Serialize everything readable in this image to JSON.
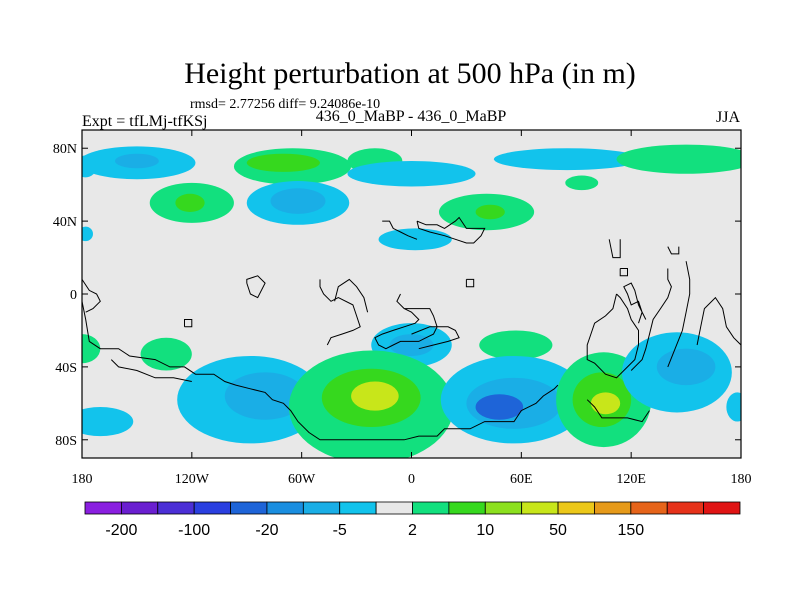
{
  "chart_data": {
    "type": "heatmap",
    "title": "Height perturbation at 500 hPa (in m)",
    "stats": "rmsd= 2.77256 diff= 9.24086e-10",
    "left_label": "Expt = tfLMj-tfKSj",
    "center_label": "436_0_MaBP - 436_0_MaBP",
    "right_label": "JJA",
    "x_ticks": [
      "180",
      "120W",
      "60W",
      "0",
      "60E",
      "120E",
      "180"
    ],
    "x_tick_values": [
      -180,
      -120,
      -60,
      0,
      60,
      120,
      180
    ],
    "y_ticks": [
      "80N",
      "40N",
      "0",
      "40S",
      "80S"
    ],
    "y_tick_values": [
      80,
      40,
      0,
      -40,
      -80
    ],
    "xlim": [
      -180,
      180
    ],
    "ylim": [
      -90,
      90
    ],
    "colorbar": {
      "colors": [
        "#8a1fe0",
        "#6a1fd0",
        "#4b2fd6",
        "#2a3fe0",
        "#1e64d8",
        "#1a8ee0",
        "#1aaee6",
        "#12c3ec",
        "#e8e8e8",
        "#12e07e",
        "#36d81e",
        "#8ce01e",
        "#c8e61a",
        "#ecc81a",
        "#e69a1a",
        "#e6641a",
        "#e6321a",
        "#e01414"
      ],
      "labels": [
        "-200",
        "-100",
        "-20",
        "-5",
        "2",
        "10",
        "50",
        "150"
      ],
      "label_positions": [
        1,
        3,
        5,
        7,
        9,
        11,
        13,
        15
      ]
    },
    "regions": [
      {
        "name": "cyan-north-atlantic",
        "level": 2,
        "cx": -150,
        "cy": 72,
        "rx": 32,
        "ry": 9
      },
      {
        "name": "blue-north-atlantic",
        "level": 3,
        "cx": -150,
        "cy": 73,
        "rx": 12,
        "ry": 4
      },
      {
        "name": "cyan-far-west",
        "level": 2,
        "cx": -178,
        "cy": 70,
        "rx": 6,
        "ry": 6
      },
      {
        "name": "green-north-america",
        "level": 8,
        "cx": -65,
        "cy": 70,
        "rx": 32,
        "ry": 10
      },
      {
        "name": "lime-north-america",
        "level": 9,
        "cx": -70,
        "cy": 72,
        "rx": 20,
        "ry": 5
      },
      {
        "name": "green-polar-left",
        "level": 8,
        "cx": -20,
        "cy": 73,
        "rx": 15,
        "ry": 7
      },
      {
        "name": "cyan-polar-mid",
        "level": 2,
        "cx": 0,
        "cy": 66,
        "rx": 35,
        "ry": 7
      },
      {
        "name": "cyan-polar-right",
        "level": 2,
        "cx": 85,
        "cy": 74,
        "rx": 40,
        "ry": 6
      },
      {
        "name": "green-far-east",
        "level": 8,
        "cx": 150,
        "cy": 74,
        "rx": 38,
        "ry": 8
      },
      {
        "name": "green-siberia",
        "level": 8,
        "cx": 93,
        "cy": 61,
        "rx": 9,
        "ry": 4
      },
      {
        "name": "green-pacific-west",
        "level": 8,
        "cx": -120,
        "cy": 50,
        "rx": 23,
        "ry": 11
      },
      {
        "name": "lime-pacific-west",
        "level": 9,
        "cx": -121,
        "cy": 50,
        "rx": 8,
        "ry": 5
      },
      {
        "name": "cyan-pacific",
        "level": 2,
        "cx": -62,
        "cy": 50,
        "rx": 28,
        "ry": 12
      },
      {
        "name": "blue-pacific",
        "level": 3,
        "cx": -62,
        "cy": 51,
        "rx": 15,
        "ry": 7
      },
      {
        "name": "green-atlantic",
        "level": 8,
        "cx": 41,
        "cy": 45,
        "rx": 26,
        "ry": 10
      },
      {
        "name": "lime-atlantic",
        "level": 9,
        "cx": 43,
        "cy": 45,
        "rx": 8,
        "ry": 4
      },
      {
        "name": "cyan-mid-asia",
        "level": 2,
        "cx": 2,
        "cy": 30,
        "rx": 20,
        "ry": 6
      },
      {
        "name": "cyan-west-edge",
        "level": 2,
        "cx": -178,
        "cy": 33,
        "rx": 4,
        "ry": 4
      },
      {
        "name": "cyan-south-tropic",
        "level": 2,
        "cx": 0,
        "cy": -28,
        "rx": 22,
        "ry": 12
      },
      {
        "name": "blue-south-tropic",
        "level": 3,
        "cx": 0,
        "cy": -28,
        "rx": 12,
        "ry": 6
      },
      {
        "name": "green-south-africa",
        "level": 8,
        "cx": 57,
        "cy": -28,
        "rx": 20,
        "ry": 8
      },
      {
        "name": "green-south-west",
        "level": 8,
        "cx": -180,
        "cy": -30,
        "rx": 10,
        "ry": 8
      },
      {
        "name": "green-south-america",
        "level": 8,
        "cx": -134,
        "cy": -33,
        "rx": 14,
        "ry": 9
      },
      {
        "name": "cyan-south-pacific",
        "level": 2,
        "cx": -88,
        "cy": -58,
        "rx": 40,
        "ry": 24
      },
      {
        "name": "blue-south-pacific",
        "level": 3,
        "cx": -80,
        "cy": -56,
        "rx": 22,
        "ry": 13
      },
      {
        "name": "green-south-atlantic",
        "level": 8,
        "cx": -22,
        "cy": -62,
        "rx": 45,
        "ry": 31
      },
      {
        "name": "lime-south-atlantic",
        "level": 9,
        "cx": -22,
        "cy": -57,
        "rx": 27,
        "ry": 16
      },
      {
        "name": "yellow-south-atlantic",
        "level": 10,
        "cx": -20,
        "cy": -56,
        "rx": 13,
        "ry": 8
      },
      {
        "name": "cyan-south-indian",
        "level": 2,
        "cx": 56,
        "cy": -58,
        "rx": 40,
        "ry": 24
      },
      {
        "name": "blue-south-indian",
        "level": 3,
        "cx": 56,
        "cy": -60,
        "rx": 26,
        "ry": 14
      },
      {
        "name": "deepblue-south-indian",
        "level": 4,
        "cx": 48,
        "cy": -62,
        "rx": 13,
        "ry": 7
      },
      {
        "name": "green-australia",
        "level": 8,
        "cx": 105,
        "cy": -58,
        "rx": 26,
        "ry": 26
      },
      {
        "name": "lime-australia",
        "level": 9,
        "cx": 104,
        "cy": -58,
        "rx": 16,
        "ry": 15
      },
      {
        "name": "yellow-australia",
        "level": 10,
        "cx": 106,
        "cy": -60,
        "rx": 8,
        "ry": 6
      },
      {
        "name": "cyan-south-pacific-east",
        "level": 2,
        "cx": 145,
        "cy": -43,
        "rx": 30,
        "ry": 22
      },
      {
        "name": "blue-south-pacific-east",
        "level": 3,
        "cx": 150,
        "cy": -40,
        "rx": 16,
        "ry": 10
      },
      {
        "name": "cyan-polar-south-west",
        "level": 2,
        "cx": -170,
        "cy": -70,
        "rx": 18,
        "ry": 8
      },
      {
        "name": "cyan-polar-south-east",
        "level": 2,
        "cx": 178,
        "cy": -62,
        "rx": 6,
        "ry": 8
      }
    ],
    "coastlines": [
      [
        [
          -180,
          -4
        ],
        [
          -178,
          -14
        ],
        [
          -176,
          -26
        ],
        [
          -170,
          -30
        ],
        [
          -160,
          -30
        ],
        [
          -154,
          -34
        ],
        [
          -140,
          -36
        ],
        [
          -132,
          -40
        ],
        [
          -124,
          -40
        ],
        [
          -118,
          -44
        ],
        [
          -108,
          -44
        ],
        [
          -102,
          -48
        ],
        [
          -96,
          -50
        ],
        [
          -88,
          -52
        ],
        [
          -80,
          -54
        ],
        [
          -76,
          -58
        ],
        [
          -70,
          -60
        ],
        [
          -66,
          -64
        ],
        [
          -62,
          -70
        ],
        [
          -56,
          -76
        ],
        [
          -50,
          -80
        ],
        [
          -30,
          -80
        ],
        [
          -4,
          -80
        ],
        [
          4,
          -78
        ],
        [
          14,
          -78
        ],
        [
          18,
          -74
        ],
        [
          32,
          -74
        ],
        [
          40,
          -70
        ],
        [
          56,
          -70
        ],
        [
          60,
          -64
        ],
        [
          68,
          -60
        ],
        [
          72,
          -56
        ],
        [
          78,
          -52
        ],
        [
          80,
          -50
        ]
      ],
      [
        [
          96,
          -58
        ],
        [
          98,
          -60
        ],
        [
          100,
          -62
        ],
        [
          104,
          -68
        ],
        [
          118,
          -68
        ],
        [
          126,
          -70
        ],
        [
          130,
          -64
        ]
      ],
      [
        [
          -120,
          -48
        ],
        [
          -130,
          -46
        ],
        [
          -140,
          -46
        ],
        [
          -150,
          -42
        ],
        [
          -160,
          -40
        ],
        [
          -164,
          -36
        ]
      ],
      [
        [
          3,
          40
        ],
        [
          8,
          38
        ],
        [
          14,
          38
        ],
        [
          18,
          36
        ],
        [
          24,
          40
        ],
        [
          26,
          42
        ],
        [
          30,
          36
        ],
        [
          40,
          36
        ],
        [
          38,
          32
        ],
        [
          34,
          28
        ],
        [
          30,
          28
        ],
        [
          24,
          30
        ],
        [
          18,
          32
        ],
        [
          10,
          34
        ],
        [
          4,
          36
        ],
        [
          3,
          40
        ]
      ],
      [
        [
          -16,
          40
        ],
        [
          -12,
          40
        ],
        [
          -10,
          36
        ],
        [
          -6,
          34
        ],
        [
          -2,
          32
        ],
        [
          3,
          30
        ]
      ],
      [
        [
          -50,
          8
        ],
        [
          -50,
          4
        ],
        [
          -48,
          0
        ],
        [
          -44,
          -4
        ],
        [
          -40,
          -2
        ],
        [
          -32,
          -6
        ],
        [
          -30,
          -12
        ],
        [
          -28,
          -18
        ],
        [
          -32,
          -20
        ],
        [
          -38,
          -22
        ],
        [
          -44,
          -24
        ],
        [
          -46,
          -28
        ]
      ],
      [
        [
          -6,
          0
        ],
        [
          -8,
          -4
        ],
        [
          -4,
          -8
        ],
        [
          0,
          -8
        ],
        [
          10,
          -8
        ],
        [
          12,
          -12
        ],
        [
          14,
          -18
        ],
        [
          12,
          -22
        ],
        [
          8,
          -24
        ],
        [
          4,
          -26
        ],
        [
          -6,
          -26
        ],
        [
          -10,
          -28
        ],
        [
          -14,
          -30
        ],
        [
          -18,
          -28
        ],
        [
          -20,
          -24
        ],
        [
          -16,
          -22
        ],
        [
          -10,
          -20
        ],
        [
          -4,
          -18
        ],
        [
          2,
          -16
        ],
        [
          4,
          -14
        ],
        [
          0,
          -10
        ],
        [
          -4,
          -8
        ]
      ],
      [
        [
          4,
          -30
        ],
        [
          12,
          -28
        ],
        [
          20,
          -26
        ],
        [
          26,
          -24
        ],
        [
          24,
          -20
        ],
        [
          20,
          -18
        ],
        [
          10,
          -18
        ],
        [
          0,
          -22
        ]
      ],
      [
        [
          -124,
          -18
        ],
        [
          -124,
          -14
        ],
        [
          -120,
          -14
        ],
        [
          -120,
          -18
        ],
        [
          -124,
          -18
        ]
      ],
      [
        [
          -24,
          -10
        ],
        [
          -26,
          -2
        ],
        [
          -30,
          4
        ],
        [
          -34,
          8
        ],
        [
          -40,
          4
        ],
        [
          -42,
          -4
        ]
      ],
      [
        [
          -90,
          6
        ],
        [
          -88,
          0
        ],
        [
          -84,
          -2
        ],
        [
          -80,
          6
        ],
        [
          -84,
          10
        ],
        [
          -90,
          8
        ],
        [
          -90,
          6
        ]
      ],
      [
        [
          112,
          0
        ],
        [
          110,
          -8
        ],
        [
          106,
          -12
        ],
        [
          100,
          -16
        ],
        [
          98,
          -22
        ],
        [
          96,
          -28
        ],
        [
          96,
          -36
        ],
        [
          100,
          -38
        ],
        [
          106,
          -44
        ],
        [
          112,
          -46
        ],
        [
          118,
          -40
        ],
        [
          122,
          -36
        ],
        [
          124,
          -28
        ],
        [
          124,
          -20
        ],
        [
          120,
          -14
        ],
        [
          118,
          -8
        ],
        [
          114,
          -2
        ],
        [
          112,
          0
        ]
      ],
      [
        [
          124,
          -16
        ],
        [
          126,
          -10
        ],
        [
          124,
          -4
        ],
        [
          120,
          -6
        ],
        [
          118,
          0
        ],
        [
          116,
          4
        ],
        [
          120,
          6
        ],
        [
          122,
          2
        ],
        [
          124,
          -6
        ],
        [
          128,
          -14
        ]
      ],
      [
        [
          140,
          14
        ],
        [
          140,
          8
        ],
        [
          142,
          4
        ],
        [
          140,
          -2
        ],
        [
          136,
          -8
        ],
        [
          132,
          -14
        ],
        [
          130,
          -22
        ],
        [
          128,
          -30
        ],
        [
          126,
          -36
        ],
        [
          120,
          -42
        ]
      ],
      [
        [
          150,
          18
        ],
        [
          152,
          8
        ],
        [
          152,
          0
        ],
        [
          150,
          -10
        ],
        [
          148,
          -20
        ],
        [
          144,
          -30
        ],
        [
          140,
          -40
        ]
      ],
      [
        [
          156,
          -28
        ],
        [
          158,
          -18
        ],
        [
          160,
          -8
        ],
        [
          166,
          -2
        ],
        [
          170,
          -8
        ],
        [
          172,
          -18
        ],
        [
          176,
          -24
        ],
        [
          180,
          -28
        ]
      ],
      [
        [
          114,
          14
        ],
        [
          114,
          10
        ],
        [
          118,
          10
        ],
        [
          118,
          14
        ],
        [
          114,
          14
        ]
      ],
      [
        [
          30,
          8
        ],
        [
          30,
          4
        ],
        [
          34,
          4
        ],
        [
          34,
          8
        ],
        [
          30,
          8
        ]
      ],
      [
        [
          140,
          26
        ],
        [
          142,
          22
        ],
        [
          146,
          22
        ],
        [
          146,
          26
        ]
      ],
      [
        [
          108,
          30
        ],
        [
          110,
          20
        ],
        [
          114,
          20
        ],
        [
          114,
          30
        ]
      ],
      [
        [
          -180,
          8
        ],
        [
          -176,
          2
        ],
        [
          -172,
          0
        ],
        [
          -170,
          -4
        ],
        [
          -174,
          -8
        ],
        [
          -178,
          -10
        ]
      ]
    ]
  }
}
